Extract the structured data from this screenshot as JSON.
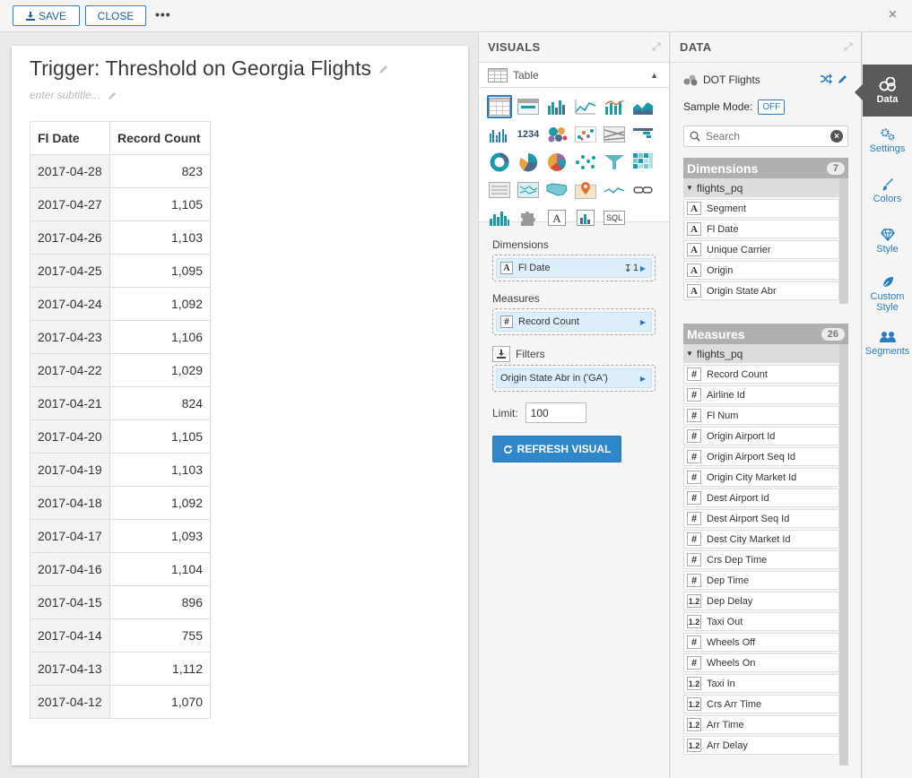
{
  "toolbar": {
    "save_label": "SAVE",
    "close_label": "CLOSE",
    "more_label": "•••",
    "window_close": "×"
  },
  "visual": {
    "title": "Trigger: Threshold on Georgia Flights",
    "subtitle_placeholder": "enter subtitle...",
    "columns": [
      "Fl Date",
      "Record Count"
    ],
    "rows": [
      [
        "2017-04-28",
        "823"
      ],
      [
        "2017-04-27",
        "1,105"
      ],
      [
        "2017-04-26",
        "1,103"
      ],
      [
        "2017-04-25",
        "1,095"
      ],
      [
        "2017-04-24",
        "1,092"
      ],
      [
        "2017-04-23",
        "1,106"
      ],
      [
        "2017-04-22",
        "1,029"
      ],
      [
        "2017-04-21",
        "824"
      ],
      [
        "2017-04-20",
        "1,105"
      ],
      [
        "2017-04-19",
        "1,103"
      ],
      [
        "2017-04-18",
        "1,092"
      ],
      [
        "2017-04-17",
        "1,093"
      ],
      [
        "2017-04-16",
        "1,104"
      ],
      [
        "2017-04-15",
        "896"
      ],
      [
        "2017-04-14",
        "755"
      ],
      [
        "2017-04-13",
        "1,112"
      ],
      [
        "2017-04-12",
        "1,070"
      ]
    ]
  },
  "visuals_panel": {
    "header": "VISUALS",
    "selected_type": "Table",
    "dimensions_label": "Dimensions",
    "dimension_pill": "Fl Date",
    "dimension_sort": "1",
    "measures_label": "Measures",
    "measure_pill": "Record Count",
    "filters_label": "Filters",
    "filter_pill": "Origin State Abr in ('GA')",
    "limit_label": "Limit:",
    "limit_value": "100",
    "refresh_label": "REFRESH VISUAL",
    "numbers_icon_text": "1234",
    "sql_icon_text": "SQL"
  },
  "data_panel": {
    "header": "DATA",
    "dataset_name": "DOT Flights",
    "sample_mode_label": "Sample Mode:",
    "sample_mode_value": "OFF",
    "search_placeholder": "Search",
    "dimensions": {
      "title": "Dimensions",
      "count": "7",
      "table": "flights_pq",
      "fields": [
        {
          "type": "A",
          "name": "Segment"
        },
        {
          "type": "A",
          "name": "Fl Date"
        },
        {
          "type": "A",
          "name": "Unique Carrier"
        },
        {
          "type": "A",
          "name": "Origin"
        },
        {
          "type": "A",
          "name": "Origin State Abr"
        }
      ]
    },
    "measures": {
      "title": "Measures",
      "count": "26",
      "table": "flights_pq",
      "fields": [
        {
          "type": "#",
          "name": "Record Count"
        },
        {
          "type": "#",
          "name": "Airline Id"
        },
        {
          "type": "#",
          "name": "Fl Num"
        },
        {
          "type": "#",
          "name": "Origin Airport Id"
        },
        {
          "type": "#",
          "name": "Origin Airport Seq Id"
        },
        {
          "type": "#",
          "name": "Origin City Market Id"
        },
        {
          "type": "#",
          "name": "Dest Airport Id"
        },
        {
          "type": "#",
          "name": "Dest Airport Seq Id"
        },
        {
          "type": "#",
          "name": "Dest City Market Id"
        },
        {
          "type": "#",
          "name": "Crs Dep Time"
        },
        {
          "type": "#",
          "name": "Dep Time"
        },
        {
          "type": "1.2",
          "name": "Dep Delay"
        },
        {
          "type": "1.2",
          "name": "Taxi Out"
        },
        {
          "type": "#",
          "name": "Wheels Off"
        },
        {
          "type": "#",
          "name": "Wheels On"
        },
        {
          "type": "1.2",
          "name": "Taxi In"
        },
        {
          "type": "1.2",
          "name": "Crs Arr Time"
        },
        {
          "type": "1.2",
          "name": "Arr Time"
        },
        {
          "type": "1.2",
          "name": "Arr Delay"
        }
      ]
    }
  },
  "side_nav": [
    {
      "label": "Data",
      "icon": "data-icon",
      "active": true
    },
    {
      "label": "Settings",
      "icon": "settings-icon"
    },
    {
      "label": "Colors",
      "icon": "brush-icon"
    },
    {
      "label": "Style",
      "icon": "diamond-icon"
    },
    {
      "label": "Custom Style",
      "icon": "leaf-icon"
    },
    {
      "label": "Segments",
      "icon": "people-icon"
    }
  ],
  "colors": {
    "accent": "#2a7bbf",
    "teal": "#1a9aaa",
    "section_header": "#b0b0b0",
    "nav_active": "#5a5a5a"
  }
}
